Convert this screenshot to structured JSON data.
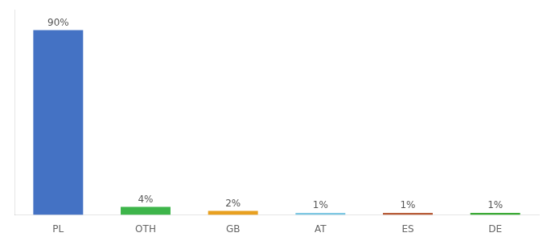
{
  "chart_data": {
    "type": "bar",
    "categories": [
      "PL",
      "OTH",
      "GB",
      "AT",
      "ES",
      "DE"
    ],
    "values": [
      90,
      4,
      2,
      1,
      1,
      1
    ],
    "value_labels": [
      "90%",
      "4%",
      "2%",
      "1%",
      "1%",
      "1%"
    ],
    "colors": [
      "#4472c4",
      "#3db54a",
      "#e8a020",
      "#7ec8e3",
      "#b85c38",
      "#3aaa35"
    ],
    "ylim": [
      0,
      100
    ],
    "grid": false,
    "tick_labels": "x"
  }
}
